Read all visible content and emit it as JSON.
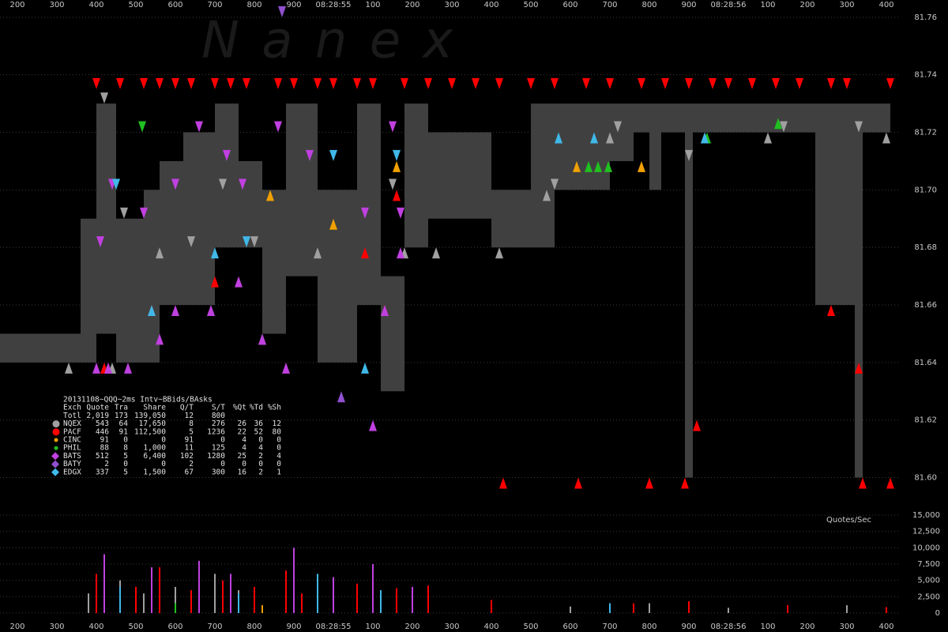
{
  "chart_data": {
    "type": "nbbo",
    "watermark": "N a n e x",
    "xlim": [
      156,
      2556
    ],
    "xticks": [
      200,
      300,
      400,
      500,
      600,
      700,
      800,
      900,
      {
        "value": 1000,
        "label": "08:28:55"
      },
      {
        "value": 1100,
        "label": "100"
      },
      {
        "value": 1200,
        "label": "200"
      },
      {
        "value": 1300,
        "label": "300"
      },
      {
        "value": 1400,
        "label": "400"
      },
      {
        "value": 1500,
        "label": "500"
      },
      {
        "value": 1600,
        "label": "600"
      },
      {
        "value": 1700,
        "label": "700"
      },
      {
        "value": 1800,
        "label": "800"
      },
      {
        "value": 1900,
        "label": "900"
      },
      {
        "value": 2000,
        "label": "08:28:56"
      },
      {
        "value": 2100,
        "label": "100"
      },
      {
        "value": 2200,
        "label": "200"
      },
      {
        "value": 2300,
        "label": "300"
      },
      {
        "value": 2400,
        "label": "400"
      }
    ],
    "ylim": [
      81.593,
      81.766
    ],
    "yticks": [
      {
        "value": 81.6,
        "label": "81.60"
      },
      81.62,
      81.64,
      81.66,
      81.68,
      {
        "value": 81.7,
        "label": "81.70"
      },
      81.72,
      81.74,
      81.76
    ],
    "grid": true,
    "nbbo": {
      "color": "#404040",
      "x": [
        156,
        360,
        400,
        450,
        520,
        560,
        620,
        700,
        760,
        820,
        880,
        960,
        1060,
        1120,
        1180,
        1240,
        1400,
        1500,
        1560,
        1640,
        1700,
        1760,
        1800,
        1830,
        1890,
        1910,
        2120,
        2220,
        2320,
        2340,
        2410
      ],
      "bid": [
        81.64,
        81.64,
        81.65,
        81.64,
        81.64,
        81.66,
        81.66,
        81.68,
        81.68,
        81.65,
        81.67,
        81.64,
        81.66,
        81.63,
        81.68,
        81.69,
        81.68,
        81.68,
        81.7,
        81.7,
        81.71,
        81.72,
        81.7,
        81.72,
        81.6,
        81.72,
        81.72,
        81.66,
        81.6,
        81.72,
        81.72
      ],
      "ask": [
        81.65,
        81.69,
        81.73,
        81.69,
        81.7,
        81.71,
        81.72,
        81.73,
        81.71,
        81.7,
        81.73,
        81.7,
        81.73,
        81.67,
        81.73,
        81.72,
        81.7,
        81.73,
        81.73,
        81.73,
        81.73,
        81.73,
        81.73,
        81.73,
        81.73,
        81.73,
        81.73,
        81.73,
        81.73,
        81.73,
        81.73
      ]
    },
    "volume": {
      "title": "Quotes/Sec",
      "ylim": [
        0,
        15000
      ],
      "yticks": [
        0,
        {
          "value": 2500,
          "label": "2,500"
        },
        {
          "value": 5000,
          "label": "5,000"
        },
        {
          "value": 7500,
          "label": "7,500"
        },
        {
          "value": 10000,
          "label": "10,000"
        },
        {
          "value": 12500,
          "label": "12,500"
        },
        {
          "value": 15000,
          "label": "15,000"
        }
      ]
    },
    "table": {
      "title": "20131108~QQQ~2ms Intv~BBids/BAsks",
      "columns": [
        "Exch",
        "Quote",
        "Tra",
        "Share",
        "Q/T",
        "S/T",
        "%Qt",
        "%Td",
        "%Sh"
      ],
      "total": {
        "label": "Totl",
        "stats": [
          "2,019",
          "173",
          "139,050",
          "12",
          "800"
        ]
      }
    },
    "series": [
      {
        "name": "NQEX",
        "color": "#a0a0a0",
        "marker": "circle",
        "stats": [
          "543",
          "64",
          "17,650",
          "8",
          "276",
          "26",
          "36",
          "12"
        ],
        "asks": {
          "x": [
            420,
            470,
            640,
            720,
            800,
            1150,
            1560,
            1720,
            1900,
            2140,
            2330
          ],
          "y": [
            81.73,
            81.69,
            81.68,
            81.7,
            81.68,
            81.7,
            81.7,
            81.72,
            81.71,
            81.72,
            81.72
          ]
        },
        "bids": {
          "x": [
            330,
            440,
            560,
            690,
            820,
            960,
            1180,
            1260,
            1420,
            1540,
            1700,
            1940,
            2100,
            2400
          ],
          "y": [
            81.64,
            81.64,
            81.68,
            81.66,
            81.65,
            81.68,
            81.68,
            81.68,
            81.68,
            81.7,
            81.72,
            81.72,
            81.72,
            81.72
          ]
        },
        "rate": {
          "x": [
            380,
            420,
            460,
            520,
            600,
            700,
            760,
            900,
            1000,
            1060,
            1200,
            1600,
            1800,
            2000,
            2300
          ],
          "values": [
            3000,
            2500,
            5000,
            3000,
            4000,
            6000,
            3500,
            2000,
            4500,
            3000,
            2500,
            1000,
            1500,
            800,
            1200
          ]
        }
      },
      {
        "name": "PACF",
        "color": "#ff0000",
        "marker": "circle",
        "stats": [
          "446",
          "91",
          "112,500",
          "5",
          "1236",
          "22",
          "52",
          "80"
        ],
        "asks": {
          "x": [
            400,
            460,
            520,
            560,
            600,
            640,
            700,
            740,
            780,
            860,
            900,
            960,
            1000,
            1060,
            1100,
            1180,
            1240,
            1300,
            1360,
            1420,
            1500,
            1560,
            1640,
            1700,
            1780,
            1840,
            1900,
            1960,
            2000,
            2060,
            2120,
            2180,
            2260,
            2300,
            2410
          ],
          "y": [
            81.735,
            81.735,
            81.735,
            81.735,
            81.735,
            81.735,
            81.735,
            81.735,
            81.735,
            81.735,
            81.735,
            81.735,
            81.735,
            81.735,
            81.735,
            81.735,
            81.735,
            81.735,
            81.735,
            81.735,
            81.735,
            81.735,
            81.735,
            81.735,
            81.735,
            81.735,
            81.735,
            81.735,
            81.735,
            81.735,
            81.735,
            81.735,
            81.735,
            81.735,
            81.735
          ]
        },
        "bids": {
          "x": [
            420,
            540,
            700,
            1080,
            1130,
            1160,
            1430,
            1620,
            1800,
            1890,
            1920,
            2260,
            2330,
            2340,
            2410
          ],
          "y": [
            81.64,
            81.66,
            81.67,
            81.68,
            81.66,
            81.7,
            81.6,
            81.6,
            81.6,
            81.6,
            81.62,
            81.66,
            81.64,
            81.6,
            81.6
          ]
        },
        "rate": {
          "x": [
            400,
            500,
            560,
            640,
            720,
            800,
            880,
            920,
            1060,
            1160,
            1240,
            1400,
            1760,
            1900,
            2150,
            2400
          ],
          "values": [
            6000,
            4000,
            7000,
            3500,
            5000,
            4000,
            6500,
            3000,
            4500,
            3800,
            4200,
            2000,
            1500,
            1800,
            1200,
            900
          ]
        }
      },
      {
        "name": "CINC",
        "color": "#f0a000",
        "marker": "dot",
        "stats": [
          "91",
          "0",
          "0",
          "91",
          "0",
          "4",
          "0",
          "0"
        ],
        "asks": {
          "x": [],
          "y": []
        },
        "bids": {
          "x": [
            840,
            1000,
            1160,
            1616,
            1780
          ],
          "y": [
            81.7,
            81.69,
            81.71,
            81.71,
            81.71
          ]
        },
        "rate": {
          "x": [
            820,
            1200
          ],
          "values": [
            1200,
            900
          ]
        }
      },
      {
        "name": "PHIL",
        "color": "#20c020",
        "marker": "dot",
        "stats": [
          "88",
          "8",
          "1,000",
          "11",
          "125",
          "4",
          "4",
          "0"
        ],
        "asks": {
          "x": [
            516
          ],
          "y": [
            81.72
          ]
        },
        "bids": {
          "x": [
            1646,
            1670,
            1696,
            1946,
            2126
          ],
          "y": [
            81.71,
            81.71,
            81.71,
            81.72,
            81.725
          ]
        },
        "rate": {
          "x": [
            600,
            1700
          ],
          "values": [
            1500,
            800
          ]
        }
      },
      {
        "name": "BATS",
        "color": "#c040e0",
        "marker": "diamond",
        "stats": [
          "512",
          "5",
          "6,400",
          "102",
          "1280",
          "25",
          "2",
          "4"
        ],
        "asks": {
          "x": [
            410,
            440,
            520,
            600,
            660,
            730,
            770,
            860,
            940,
            1080,
            1150,
            1170
          ],
          "y": [
            81.68,
            81.7,
            81.69,
            81.7,
            81.72,
            81.71,
            81.7,
            81.72,
            81.71,
            81.69,
            81.72,
            81.69
          ]
        },
        "bids": {
          "x": [
            400,
            430,
            480,
            560,
            600,
            690,
            760,
            820,
            880,
            1100,
            1130,
            1170
          ],
          "y": [
            81.64,
            81.64,
            81.64,
            81.65,
            81.66,
            81.66,
            81.67,
            81.65,
            81.64,
            81.62,
            81.66,
            81.68
          ]
        },
        "rate": {
          "x": [
            420,
            540,
            660,
            740,
            900,
            1000,
            1100,
            1200
          ],
          "values": [
            9000,
            7000,
            8000,
            6000,
            10000,
            5500,
            7500,
            4000
          ]
        }
      },
      {
        "name": "BATY",
        "color": "#9050d0",
        "marker": "diamond",
        "stats": [
          "2",
          "0",
          "0",
          "2",
          "0",
          "0",
          "0",
          "0"
        ],
        "asks": {
          "x": [
            870
          ],
          "y": [
            81.76
          ]
        },
        "bids": {
          "x": [
            1020
          ],
          "y": [
            81.63
          ]
        },
        "rate": {
          "x": [],
          "values": []
        }
      },
      {
        "name": "EDGX",
        "color": "#40b8e8",
        "marker": "diamond",
        "stats": [
          "337",
          "5",
          "1,500",
          "67",
          "300",
          "16",
          "2",
          "1"
        ],
        "asks": {
          "x": [
            450,
            780,
            1000,
            1160
          ],
          "y": [
            81.7,
            81.68,
            81.71,
            81.71
          ]
        },
        "bids": {
          "x": [
            540,
            700,
            1080,
            1570,
            1660,
            1940
          ],
          "y": [
            81.66,
            81.68,
            81.64,
            81.72,
            81.72,
            81.72
          ]
        },
        "rate": {
          "x": [
            460,
            760,
            960,
            1120,
            1700
          ],
          "values": [
            4000,
            3000,
            6000,
            3500,
            1500
          ]
        }
      }
    ]
  }
}
